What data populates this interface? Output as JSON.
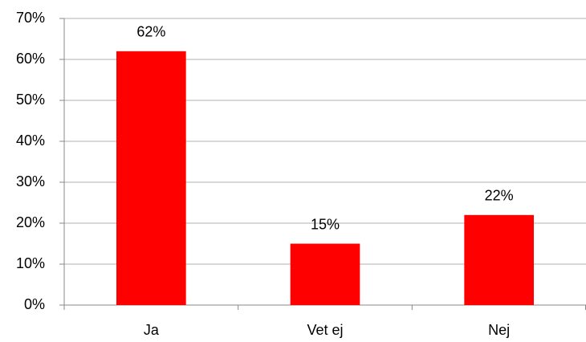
{
  "chart_data": {
    "type": "bar",
    "categories": [
      "Ja",
      "Vet ej",
      "Nej"
    ],
    "values": [
      62,
      15,
      22
    ],
    "value_labels": [
      "62%",
      "15%",
      "22%"
    ],
    "color": "#ff0000",
    "ylim": [
      0,
      70
    ],
    "yticks": [
      {
        "value": 0,
        "label": "0%"
      },
      {
        "value": 10,
        "label": "10%"
      },
      {
        "value": 20,
        "label": "20%"
      },
      {
        "value": 30,
        "label": "30%"
      },
      {
        "value": 40,
        "label": "40%"
      },
      {
        "value": 50,
        "label": "50%"
      },
      {
        "value": 60,
        "label": "60%"
      },
      {
        "value": 70,
        "label": "70%"
      }
    ],
    "grid": true
  }
}
